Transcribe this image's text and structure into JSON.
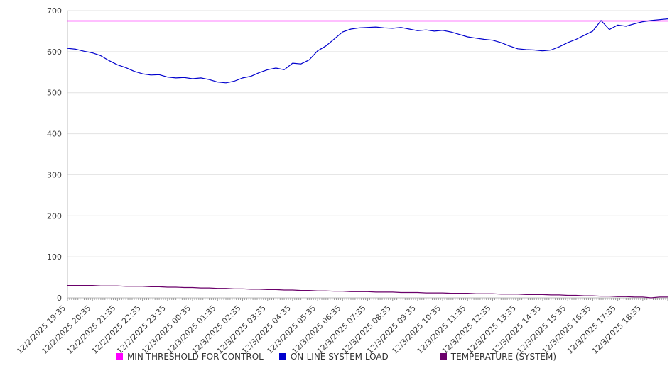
{
  "chart_data": {
    "type": "line",
    "title": "",
    "xlabel": "",
    "ylabel": "",
    "ylim": [
      0,
      700
    ],
    "y_ticks": [
      0,
      100,
      200,
      300,
      400,
      500,
      600,
      700
    ],
    "grid": true,
    "legend_position": "bottom",
    "x_total_minutes": 1440,
    "x_label_interval_minutes": 60,
    "sample_interval_minutes": 20,
    "x_labels": [
      "12/2/2025 19:35",
      "12/2/2025 20:35",
      "12/2/2025 21:35",
      "12/2/2025 22:35",
      "12/2/2025 23:35",
      "12/3/2025 00:35",
      "12/3/2025 01:35",
      "12/3/2025 02:35",
      "12/3/2025 03:35",
      "12/3/2025 04:35",
      "12/3/2025 05:35",
      "12/3/2025 06:35",
      "12/3/2025 07:35",
      "12/3/2025 08:35",
      "12/3/2025 09:35",
      "12/3/2025 10:35",
      "12/3/2025 11:35",
      "12/3/2025 12:35",
      "12/3/2025 13:35",
      "12/3/2025 14:35",
      "12/3/2025 15:35",
      "12/3/2025 16:35",
      "12/3/2025 17:35",
      "12/3/2025 18:35"
    ],
    "series": [
      {
        "name": "MIN THRESHOLD FOR CONTROL",
        "color": "#ff00ff",
        "width": 1.5,
        "values": [
          675,
          675
        ]
      },
      {
        "name": "ON-LINE SYSTEM LOAD",
        "color": "#0000cd",
        "width": 1.2,
        "values": [
          608,
          606,
          601,
          597,
          590,
          578,
          568,
          561,
          552,
          546,
          543,
          544,
          538,
          536,
          537,
          534,
          536,
          532,
          526,
          524,
          528,
          536,
          540,
          549,
          556,
          560,
          556,
          572,
          570,
          580,
          602,
          614,
          631,
          648,
          655,
          658,
          659,
          660,
          658,
          657,
          659,
          655,
          651,
          653,
          650,
          652,
          648,
          642,
          636,
          633,
          630,
          628,
          622,
          614,
          607,
          605,
          604,
          602,
          604,
          612,
          622,
          630,
          640,
          650,
          676,
          654,
          665,
          662,
          668,
          673,
          676,
          678,
          680
        ]
      },
      {
        "name": "TEMPERATURE (SYSTEM)",
        "color": "#6a006a",
        "width": 1.2,
        "values": [
          30,
          30,
          30,
          30,
          29,
          29,
          29,
          28,
          28,
          28,
          27,
          27,
          26,
          26,
          25,
          25,
          24,
          24,
          23,
          23,
          22,
          22,
          21,
          21,
          20,
          20,
          19,
          19,
          18,
          18,
          17,
          17,
          16,
          16,
          15,
          15,
          15,
          14,
          14,
          14,
          13,
          13,
          13,
          12,
          12,
          12,
          11,
          11,
          11,
          10,
          10,
          10,
          9,
          9,
          9,
          8,
          8,
          8,
          7,
          7,
          6,
          6,
          5,
          5,
          4,
          4,
          3,
          3,
          2,
          2,
          0,
          2,
          2
        ]
      }
    ]
  }
}
